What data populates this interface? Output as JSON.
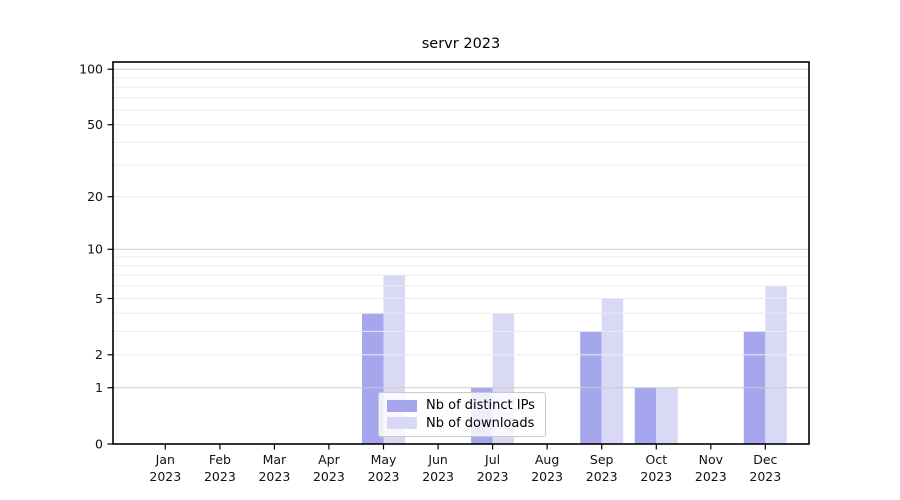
{
  "title": "servr 2023",
  "legend": {
    "entries": [
      {
        "label": "Nb of distinct IPs",
        "swatch_color": "#a6a6ef"
      },
      {
        "label": "Nb of downloads",
        "swatch_color": "#d9d9f6"
      }
    ]
  },
  "chart_data": {
    "type": "bar",
    "title": "servr 2023",
    "categories": [
      "Jan 2023",
      "Feb 2023",
      "Mar 2023",
      "Apr 2023",
      "May 2023",
      "Jun 2023",
      "Jul 2023",
      "Aug 2023",
      "Sep 2023",
      "Oct 2023",
      "Nov 2023",
      "Dec 2023"
    ],
    "series": [
      {
        "name": "Nb of distinct IPs",
        "color": "#a6a6ef",
        "values": [
          0,
          0,
          0,
          0,
          4,
          0,
          1,
          0,
          3,
          1,
          0,
          3
        ]
      },
      {
        "name": "Nb of downloads",
        "color": "#d9d9f6",
        "values": [
          0,
          0,
          0,
          0,
          7,
          0,
          4,
          0,
          5,
          1,
          0,
          6
        ]
      }
    ],
    "xlabel": "",
    "ylabel": "",
    "yscale": "log1p",
    "ylim": [
      0,
      110
    ],
    "yticks": [
      0,
      1,
      2,
      5,
      10,
      20,
      50,
      100
    ],
    "grid": "horizontal log-minor lines (1-10, 20-100 step 10), drawn over bars",
    "legend_position": "bottom-center inside plot"
  }
}
